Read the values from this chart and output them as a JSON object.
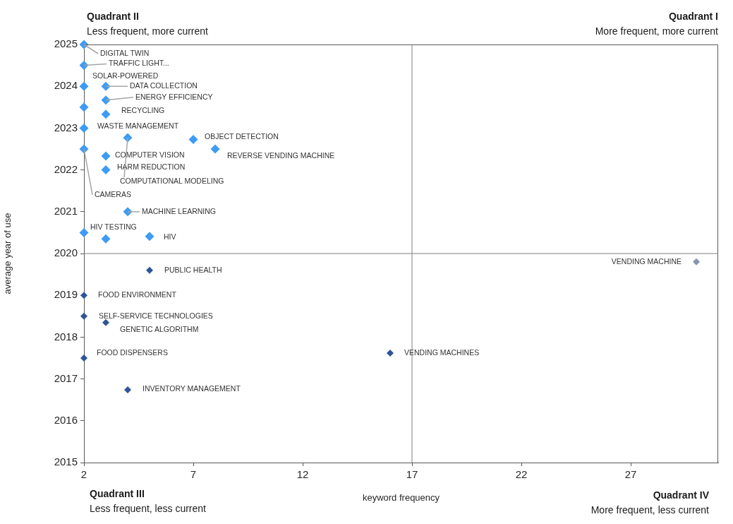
{
  "chart_data": {
    "type": "scatter",
    "xlabel": "keyword frequency",
    "ylabel": "average year of use",
    "xlim": [
      2,
      31
    ],
    "xticks": [
      2,
      7,
      12,
      17,
      22,
      27
    ],
    "ylim": [
      2015,
      2025
    ],
    "yticks": [
      2015,
      2016,
      2017,
      2018,
      2019,
      2020,
      2021,
      2022,
      2023,
      2024,
      2025
    ],
    "grid": false,
    "legend": false,
    "marker": "diamond",
    "series": [
      {
        "color": "#3d9bf5",
        "x": [
          2,
          2,
          2,
          3,
          3,
          2,
          3,
          2,
          4,
          7,
          8,
          2,
          3,
          3,
          4,
          2,
          3,
          5
        ],
        "values": [
          2025,
          2024.5,
          2024,
          2024,
          2023.67,
          2023.5,
          2023.33,
          2023,
          2022.77,
          2022.73,
          2022.5,
          2022.5,
          2022.33,
          2022,
          2021,
          2020.5,
          2020.35,
          2020.41
        ]
      },
      {
        "color": "#2f5597",
        "x": [
          5,
          2,
          2,
          3,
          2,
          4,
          16
        ],
        "values": [
          2019.6,
          2019,
          2018.5,
          2018.35,
          2017.5,
          2016.74,
          2017.62
        ]
      },
      {
        "color": "#8497b0",
        "x": [
          30
        ],
        "values": [
          2019.8
        ]
      }
    ],
    "ref_lines": [
      {
        "axis": "x",
        "value": 17,
        "color": "#808080"
      },
      {
        "axis": "y",
        "value": 2020,
        "color": "#808080"
      }
    ],
    "annotations": [
      "Quadrant II",
      "Less frequent, more current",
      "Quadrant I",
      "More frequent, more current",
      "Quadrant III",
      "Less frequent, less current",
      "Quadrant IV",
      "More frequent, less current",
      {
        "text": "DIGITAL TWIN",
        "x": 2,
        "y": 2025
      },
      {
        "text": "TRAFFIC LIGHT...",
        "x": 2,
        "y": 2024.5
      },
      {
        "text": "SOLAR-POWERED",
        "x": 2,
        "y": 2024
      },
      {
        "text": "DATA COLLECTION",
        "x": 3,
        "y": 2024
      },
      {
        "text": "ENERGY EFFICIENCY",
        "x": 3,
        "y": 2023.67
      },
      {
        "text": "RECYCLING",
        "x": 3,
        "y": 2023.33
      },
      {
        "text": "WASTE MANAGEMENT",
        "x": 2,
        "y": 2023
      },
      {
        "text": "OBJECT DETECTION",
        "x": 7,
        "y": 2022.73
      },
      {
        "text": "REVERSE VENDING MACHINE",
        "x": 8,
        "y": 2022.5
      },
      {
        "text": "COMPUTER VISION",
        "x": 3,
        "y": 2022.33
      },
      {
        "text": "HARM REDUCTION",
        "x": 3,
        "y": 2022
      },
      {
        "text": "COMPUTATIONAL MODELING",
        "x": 4,
        "y": 2022.77
      },
      {
        "text": "CAMERAS",
        "x": 2,
        "y": 2022.5
      },
      {
        "text": "MACHINE LEARNING",
        "x": 4,
        "y": 2021
      },
      {
        "text": "HIV TESTING",
        "x": 2,
        "y": 2020.5
      },
      {
        "text": "HIV",
        "x": 5,
        "y": 2020.41
      },
      {
        "text": "PUBLIC HEALTH",
        "x": 5,
        "y": 2019.6
      },
      {
        "text": "FOOD ENVIRONMENT",
        "x": 2,
        "y": 2019
      },
      {
        "text": "SELF-SERVICE TECHNOLOGIES",
        "x": 2,
        "y": 2018.5
      },
      {
        "text": "GENETIC ALGORITHM",
        "x": 3,
        "y": 2018.35
      },
      {
        "text": "FOOD DISPENSERS",
        "x": 2,
        "y": 2017.5
      },
      {
        "text": "INVENTORY MANAGEMENT",
        "x": 4,
        "y": 2016.74
      },
      {
        "text": "VENDING MACHINES",
        "x": 16,
        "y": 2017.62
      },
      {
        "text": "VENDING MACHINE",
        "x": 30,
        "y": 2019.8
      }
    ]
  }
}
